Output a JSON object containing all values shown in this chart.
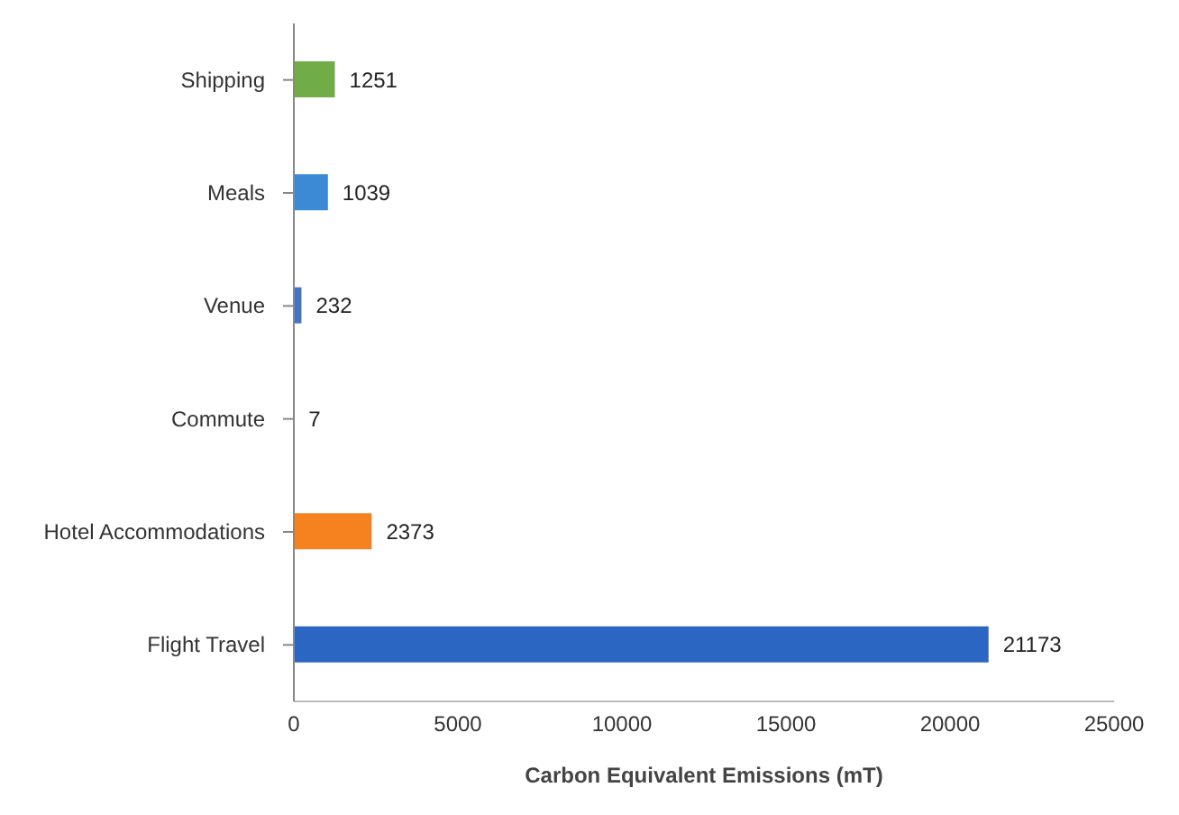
{
  "chart_data": {
    "type": "bar",
    "orientation": "horizontal",
    "xlabel": "Carbon Equivalent Emissions (mT)",
    "categories": [
      "Shipping",
      "Meals",
      "Venue",
      "Commute",
      "Hotel Accommodations",
      "Flight Travel"
    ],
    "values": [
      1251,
      1039,
      232,
      7,
      2373,
      21173
    ],
    "colors": [
      "#70ad47",
      "#3c8ad6",
      "#4472c4",
      "#4472c4",
      "#f5821f",
      "#2b66c2"
    ],
    "xlim": [
      0,
      25000
    ],
    "xticks": [
      0,
      5000,
      10000,
      15000,
      20000,
      25000
    ],
    "data_labels": true,
    "grid": false,
    "legend": false
  }
}
